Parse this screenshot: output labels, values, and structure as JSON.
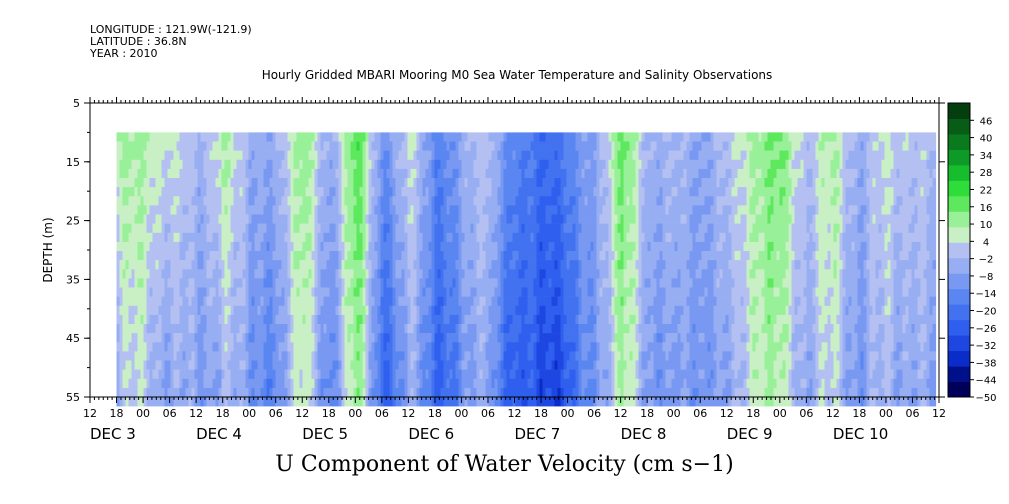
{
  "header": {
    "longitude": "LONGITUDE : 121.9W(-121.9)",
    "latitude": "LATITUDE : 36.8N",
    "year": "YEAR : 2010"
  },
  "chart_data": {
    "type": "heatmap",
    "title": "Hourly Gridded MBARI Mooring M0 Sea Water Temperature and Salinity Observations",
    "bottom_title": "U Component of Water Velocity (cm s−1)",
    "ylabel": "DEPTH (m)",
    "ylim": [
      5,
      55
    ],
    "y_ticks": [
      "5",
      "15",
      "25",
      "35",
      "45",
      "55"
    ],
    "y_data_range": [
      10,
      55
    ],
    "x_hour_ticks": [
      "12",
      "18",
      "00",
      "06",
      "12",
      "18",
      "00",
      "06",
      "12",
      "18",
      "00",
      "06",
      "12",
      "18",
      "00",
      "06",
      "12",
      "18",
      "00",
      "06",
      "12",
      "18",
      "00",
      "06",
      "12",
      "18",
      "00",
      "06",
      "12",
      "18",
      "00",
      "06",
      "12"
    ],
    "x_day_labels": [
      "DEC  3",
      "DEC  4",
      "DEC  5",
      "DEC  6",
      "DEC  7",
      "DEC  8",
      "DEC  9",
      "DEC 10"
    ],
    "data_start_hour": 18,
    "colorbar": {
      "min": -50,
      "max": 52,
      "levels": [
        -50,
        -44,
        -38,
        -32,
        -26,
        -20,
        -14,
        -8,
        -2,
        4,
        10,
        16,
        22,
        28,
        34,
        40,
        46
      ],
      "tick_labels": [
        "46",
        "40",
        "34",
        "28",
        "22",
        "16",
        "10",
        "4",
        "−2",
        "−8",
        "−14",
        "−20",
        "−26",
        "−32",
        "−38",
        "−44",
        "−50"
      ],
      "colors": [
        "#00005a",
        "#00108a",
        "#0a2cc8",
        "#1e46e0",
        "#2f5fee",
        "#4272f0",
        "#5a86f2",
        "#7898f2",
        "#98aef2",
        "#b4c0f2",
        "#c8f0c4",
        "#98f098",
        "#5ee85e",
        "#2edc3a",
        "#16be2e",
        "#0e9a26",
        "#0a7a1e",
        "#075c16",
        "#053e0e"
      ],
      "values_approx": [
        -50,
        -44,
        -38,
        -32,
        -26,
        -20,
        -14,
        -8,
        -2,
        4,
        10,
        16,
        22,
        28,
        34,
        40,
        46
      ]
    },
    "column_profile_hours": [
      18,
      24,
      30,
      36,
      42,
      48,
      54,
      60,
      66,
      72,
      78,
      84,
      90,
      96,
      102,
      108,
      114,
      120,
      126,
      132,
      138,
      144,
      150,
      156,
      162,
      168,
      174,
      180,
      186,
      192,
      198,
      204
    ],
    "column_profile_values_upper": [
      8,
      10,
      6,
      -4,
      12,
      -6,
      -2,
      12,
      -4,
      18,
      -10,
      4,
      -14,
      -6,
      2,
      -16,
      -22,
      -14,
      -8,
      20,
      -6,
      2,
      -10,
      4,
      8,
      18,
      -2,
      12,
      -6,
      6,
      2,
      -4
    ],
    "column_profile_values_lower": [
      -4,
      2,
      -6,
      -10,
      0,
      -14,
      -10,
      4,
      -12,
      10,
      -22,
      -8,
      -22,
      -14,
      -6,
      -28,
      -32,
      -24,
      -14,
      14,
      -14,
      -4,
      -16,
      -2,
      2,
      12,
      -10,
      6,
      -12,
      -2,
      -4,
      -14
    ]
  }
}
